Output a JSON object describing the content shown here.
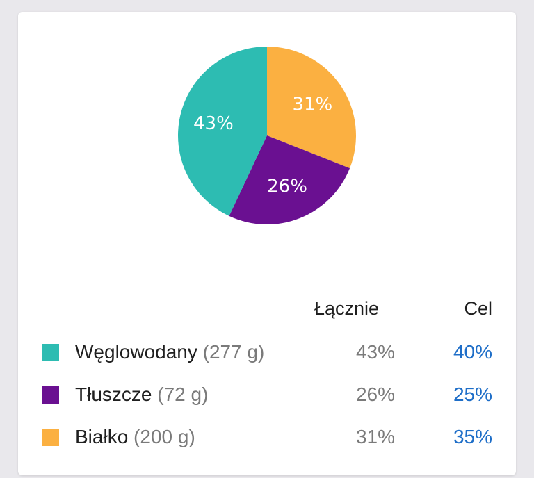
{
  "chart_data": {
    "type": "pie",
    "slices": [
      {
        "name": "Białko",
        "value": 31,
        "label": "31%",
        "color": "#fbb041"
      },
      {
        "name": "Tłuszcze",
        "value": 26,
        "label": "26%",
        "color": "#6a1091"
      },
      {
        "name": "Węglowodany",
        "value": 43,
        "label": "43%",
        "color": "#2dbcb2"
      }
    ]
  },
  "table": {
    "headers": {
      "total": "Łącznie",
      "goal": "Cel"
    },
    "rows": [
      {
        "name": "Węglowodany",
        "grams": "(277 g)",
        "total": "43%",
        "goal": "40%",
        "color": "#2dbcb2"
      },
      {
        "name": "Tłuszcze",
        "grams": "(72 g)",
        "total": "26%",
        "goal": "25%",
        "color": "#6a1091"
      },
      {
        "name": "Białko",
        "grams": "(200 g)",
        "total": "31%",
        "goal": "35%",
        "color": "#fbb041"
      }
    ]
  }
}
